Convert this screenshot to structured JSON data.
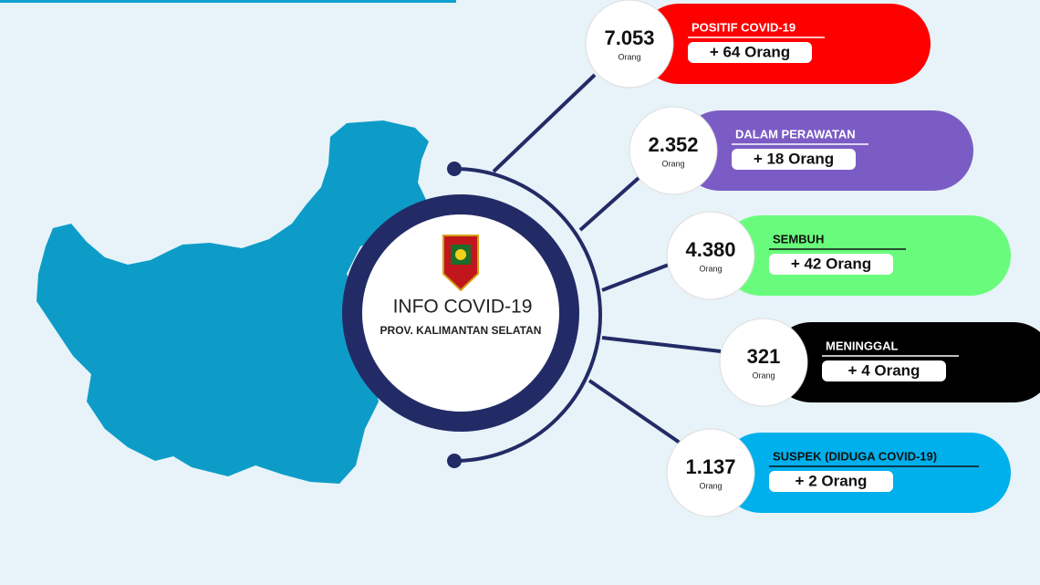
{
  "center": {
    "title": "INFO COVID-19",
    "subtitle": "PROV. KALIMANTAN SELATAN"
  },
  "items": [
    {
      "value": "7.053",
      "unit": "Orang",
      "label": "POSITIF COVID-19",
      "delta": "+ 64 Orang"
    },
    {
      "value": "2.352",
      "unit": "Orang",
      "label": "DALAM PERAWATAN",
      "delta": "+ 18 Orang"
    },
    {
      "value": "4.380",
      "unit": "Orang",
      "label": "SEMBUH",
      "delta": "+ 42 Orang"
    },
    {
      "value": "321",
      "unit": "Orang",
      "label": "MENINGGAL",
      "delta": "+ 4 Orang"
    },
    {
      "value": "1.137",
      "unit": "Orang",
      "label": "SUSPEK (DIDUGA COVID-19)",
      "delta": "+ 2 Orang"
    }
  ]
}
